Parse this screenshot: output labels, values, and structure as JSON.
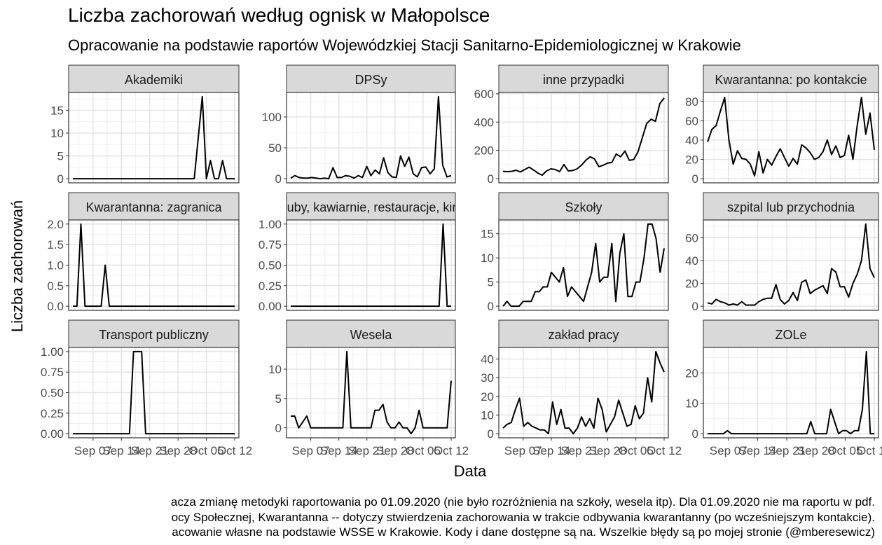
{
  "title": "Liczba zachorowań według ognisk w Małopolsce",
  "subtitle": "Opracowanie na podstawie raportów Wojewódzkiej Stacji Sanitarno-Epidemiologicznej w Krakowie",
  "caption": [
    "acza zmianę metodyki raportowania po 01.09.2020 (nie było rozróżnienia na szkoły, wesela itp). Dla 01.09.2020 nie ma raportu w pdf.",
    "ocy Społecznej, Kwarantanna -- dotyczy stwierdzenia zachorowania w trakcie odbywania kwarantanny (po wcześniejszym kontakcie).",
    "acowanie własne na podstawie WSSE w Krakowie. Kody i dane dostępne są na. Wszelkie błędy są po mojej stronie (@mberesewicz)"
  ],
  "chart_data": {
    "type": "line",
    "xlabel": "Data",
    "ylabel": "Liczba zachorowań",
    "x_range": [
      "2020-09-02",
      "2020-10-12"
    ],
    "x_tick_labels": [
      "Sep 07",
      "Sep 14",
      "Sep 21",
      "Sep 28",
      "Oct 05",
      "Oct 12"
    ],
    "facets": [
      {
        "name": "Akademiki",
        "yticks": [
          0,
          5,
          10,
          15
        ],
        "ylim": [
          0,
          18
        ],
        "values": [
          0,
          0,
          0,
          0,
          0,
          0,
          0,
          0,
          0,
          0,
          0,
          0,
          0,
          0,
          0,
          0,
          0,
          0,
          0,
          0,
          0,
          0,
          0,
          0,
          0,
          0,
          0,
          0,
          0,
          0,
          0,
          9,
          18,
          0,
          4,
          0,
          0,
          4,
          0,
          0,
          0
        ]
      },
      {
        "name": "DPSy",
        "yticks": [
          0,
          50,
          100
        ],
        "ylim": [
          0,
          133
        ],
        "values": [
          1,
          5,
          2,
          1,
          1,
          2,
          1,
          0,
          1,
          0,
          18,
          2,
          2,
          5,
          4,
          1,
          5,
          2,
          20,
          5,
          14,
          8,
          34,
          10,
          3,
          2,
          37,
          20,
          35,
          8,
          3,
          18,
          19,
          8,
          16,
          133,
          22,
          3,
          5
        ]
      },
      {
        "name": "inne przypadki",
        "yticks": [
          0,
          200,
          400,
          600
        ],
        "ylim": [
          0,
          580
        ],
        "values": [
          52,
          50,
          52,
          60,
          48,
          65,
          82,
          62,
          40,
          25,
          55,
          70,
          65,
          50,
          100,
          55,
          58,
          70,
          95,
          130,
          155,
          140,
          85,
          95,
          110,
          115,
          175,
          155,
          195,
          130,
          135,
          190,
          290,
          390,
          420,
          405,
          530,
          570
        ]
      },
      {
        "name": "Kwarantanna: po kontakcie",
        "yticks": [
          0,
          20,
          40,
          60,
          80
        ],
        "ylim": [
          0,
          85
        ],
        "values": [
          38,
          51,
          55,
          70,
          84,
          40,
          15,
          29,
          21,
          20,
          15,
          3,
          28,
          6,
          20,
          14,
          23,
          31,
          22,
          13,
          21,
          15,
          35,
          32,
          27,
          20,
          22,
          28,
          40,
          25,
          34,
          22,
          24,
          45,
          20,
          55,
          84,
          46,
          68,
          30
        ]
      },
      {
        "name": "Kwarantanna: zagranica",
        "yticks": [
          0.0,
          0.5,
          1.0,
          1.5,
          2.0
        ],
        "ylim": [
          0,
          2
        ],
        "values": [
          0,
          0,
          2,
          0,
          0,
          0,
          0,
          0,
          1,
          0,
          0,
          0,
          0,
          0,
          0,
          0,
          0,
          0,
          0,
          0,
          0,
          0,
          0,
          0,
          0,
          0,
          0,
          0,
          0,
          0,
          0,
          0,
          0,
          0,
          0,
          0,
          0,
          0,
          0,
          0,
          0
        ]
      },
      {
        "name": "Kluby, kawiarnie, restauracje, kina",
        "yticks": [
          0.0,
          0.25,
          0.5,
          0.75,
          1.0
        ],
        "ylim": [
          0,
          1
        ],
        "values": [
          0,
          0,
          0,
          0,
          0,
          0,
          0,
          0,
          0,
          0,
          0,
          0,
          0,
          0,
          0,
          0,
          0,
          0,
          0,
          0,
          0,
          0,
          0,
          0,
          0,
          0,
          0,
          0,
          0,
          0,
          0,
          0,
          0,
          0,
          0,
          0,
          0,
          0,
          1,
          0,
          0
        ]
      },
      {
        "name": "Szkoły",
        "yticks": [
          0,
          5,
          10,
          15
        ],
        "ylim": [
          0,
          17
        ],
        "values": [
          0,
          1,
          0,
          0,
          0,
          1,
          1,
          1,
          3,
          3,
          4,
          4,
          7,
          6,
          5,
          8,
          2,
          4,
          3,
          2,
          1,
          4,
          7,
          13,
          5,
          6,
          6,
          13,
          1,
          11,
          15,
          2,
          2,
          5,
          5,
          10,
          17,
          17,
          14,
          7,
          12
        ]
      },
      {
        "name": "szpital lub przychodnia",
        "yticks": [
          0,
          20,
          40,
          60
        ],
        "ylim": [
          0,
          72
        ],
        "values": [
          3,
          2,
          6,
          4,
          3,
          1,
          2,
          1,
          4,
          1,
          1,
          1,
          4,
          6,
          7,
          7,
          19,
          6,
          2,
          5,
          12,
          5,
          21,
          23,
          11,
          14,
          16,
          18,
          11,
          33,
          30,
          17,
          17,
          8,
          20,
          28,
          40,
          72,
          33,
          25
        ]
      },
      {
        "name": "Transport publiczny",
        "yticks": [
          0.0,
          0.25,
          0.5,
          0.75,
          1.0
        ],
        "ylim": [
          0,
          1
        ],
        "values": [
          0,
          0,
          0,
          0,
          0,
          0,
          0,
          0,
          0,
          0,
          0,
          0,
          0,
          0,
          0,
          1,
          1,
          1,
          0,
          0,
          0,
          0,
          0,
          0,
          0,
          0,
          0,
          0,
          0,
          0,
          0,
          0,
          0,
          0,
          0,
          0,
          0,
          0,
          0,
          0,
          0
        ]
      },
      {
        "name": "Wesela",
        "yticks": [
          0,
          5,
          10
        ],
        "ylim": [
          -1,
          13
        ],
        "values": [
          2,
          2,
          0,
          1,
          2,
          0,
          0,
          0,
          0,
          0,
          0,
          0,
          0,
          0,
          13,
          0,
          0,
          0,
          0,
          0,
          0,
          3,
          3,
          4,
          1,
          0,
          0,
          1,
          0,
          0,
          -1,
          0,
          3,
          0,
          0,
          0,
          0,
          0,
          0,
          0,
          8
        ]
      },
      {
        "name": "zakład pracy",
        "yticks": [
          0,
          10,
          20,
          30,
          40
        ],
        "ylim": [
          0,
          44
        ],
        "values": [
          3,
          5,
          6,
          13,
          19,
          4,
          6,
          4,
          3,
          2,
          2,
          0,
          17,
          5,
          13,
          3,
          3,
          0,
          3,
          9,
          4,
          8,
          3,
          19,
          13,
          1,
          5,
          9,
          18,
          11,
          4,
          5,
          15,
          8,
          11,
          30,
          17,
          44,
          38,
          33
        ]
      },
      {
        "name": "ZOLe",
        "yticks": [
          0,
          10,
          20
        ],
        "ylim": [
          0,
          27
        ],
        "values": [
          0,
          0,
          0,
          0,
          0,
          1,
          0,
          0,
          0,
          0,
          0,
          0,
          0,
          0,
          0,
          0,
          0,
          0,
          0,
          0,
          0,
          0,
          0,
          0,
          0,
          0,
          4,
          0,
          0,
          0,
          0,
          8,
          4,
          0,
          1,
          1,
          0,
          1,
          1,
          8,
          27,
          0,
          0
        ]
      }
    ]
  }
}
